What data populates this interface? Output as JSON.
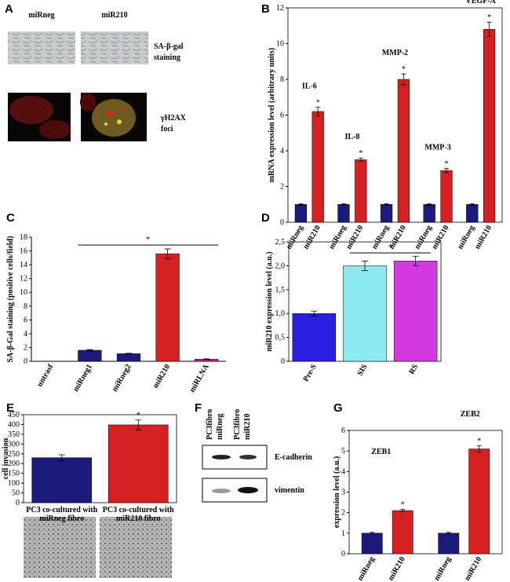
{
  "panel_labels": [
    "A",
    "B",
    "C",
    "D",
    "E",
    "F",
    "G"
  ],
  "panel_a": {
    "columns": [
      "miRneg",
      "miR210"
    ],
    "rows": [
      [
        "SA-β-gal",
        "staining"
      ],
      [
        "γH2AX",
        "foci"
      ]
    ]
  },
  "panel_f": {
    "columns": [
      [
        "PC3fibro",
        "miRneg"
      ],
      [
        "PC3fibro",
        "miR210"
      ]
    ],
    "bands": [
      "E-cadherin",
      "vimentin"
    ]
  },
  "chart_data": [
    {
      "type": "bar",
      "y_label": "mRNA expression level (arbitrary units)",
      "significance_label": "*",
      "categories": [
        "IL-6",
        "IL-8",
        "MMP-2",
        "MMP-3",
        "VEGF-A"
      ],
      "series": [
        {
          "name": "miRneg",
          "color": "#1c1a7a",
          "values": [
            1,
            1,
            1,
            1,
            1
          ],
          "errors": [
            0.04,
            0.04,
            0.04,
            0.04,
            0.04
          ]
        },
        {
          "name": "miR210",
          "color": "#d42020",
          "values": [
            6.2,
            3.5,
            8.0,
            2.9,
            10.8
          ],
          "errors": [
            0.25,
            0.1,
            0.3,
            0.12,
            0.4
          ]
        }
      ],
      "ylim": [
        0,
        12
      ],
      "yticks": [
        0,
        2,
        4,
        6,
        8,
        10,
        12
      ]
    },
    {
      "type": "bar",
      "y_label": "SA-β-Gal staining (positive cells/field)",
      "significance_label": "*",
      "categories": [
        "untrasf",
        "miRneg1",
        "miRneg2",
        "miR210",
        "miRLNA"
      ],
      "values": [
        0,
        1.6,
        1.1,
        15.6,
        0.3
      ],
      "errors": [
        0,
        0.1,
        0.06,
        0.7,
        0.05
      ],
      "colors": [
        "#1c1a7a",
        "#1c1a7a",
        "#1c1a7a",
        "#d42020",
        "#c0208a"
      ],
      "ylim": [
        0,
        18
      ],
      "yticks": [
        0,
        2,
        4,
        6,
        8,
        10,
        12,
        14,
        16,
        18
      ]
    },
    {
      "type": "bar",
      "y_label": "miR210 expression level (a.u.)",
      "significance_label": "*",
      "categories": [
        "Pre-S",
        "SIS",
        "RS"
      ],
      "values": [
        1.0,
        2.0,
        2.1
      ],
      "errors": [
        0.05,
        0.1,
        0.1
      ],
      "colors": [
        "#2a1ee0",
        "#8ceaf0",
        "#d33ae0"
      ],
      "ylim": [
        0,
        2.5
      ],
      "yticks": [
        0,
        {
          "value": 0.5,
          "label": "0,5"
        },
        {
          "value": 1.0,
          "label": "1,0"
        },
        {
          "value": 1.5,
          "label": "1,5"
        },
        {
          "value": 2.0,
          "label": "2,0"
        },
        {
          "value": 2.5,
          "label": "2,5"
        }
      ]
    },
    {
      "type": "bar",
      "y_label": "cell invasion",
      "significance_label": "*",
      "categories": [
        "PC3 co-cultured with miRneg fibro",
        "PC3 co-cultured with miR210 fibro"
      ],
      "values": [
        230,
        398
      ],
      "errors": [
        15,
        25
      ],
      "colors": [
        "#1c1a7a",
        "#d42020"
      ],
      "ylim": [
        0,
        450
      ],
      "yticks": [
        0,
        50,
        100,
        150,
        200,
        250,
        300,
        350,
        400,
        450
      ]
    },
    {
      "type": "bar",
      "y_label": "expression level (a.u.)",
      "significance_label": "*",
      "categories": [
        "ZEB1",
        "ZEB2"
      ],
      "series": [
        {
          "name": "miRneg",
          "color": "#1c1a7a",
          "values": [
            1,
            1
          ],
          "errors": [
            0.04,
            0.04
          ]
        },
        {
          "name": "miR210",
          "color": "#d42020",
          "values": [
            2.1,
            5.1
          ],
          "errors": [
            0.06,
            0.15
          ]
        }
      ],
      "ylim": [
        0,
        6
      ],
      "yticks": [
        0,
        1,
        2,
        3,
        4,
        5,
        6
      ]
    }
  ]
}
